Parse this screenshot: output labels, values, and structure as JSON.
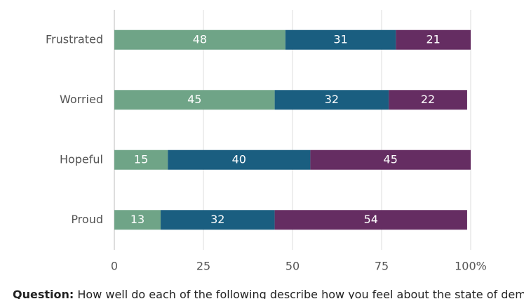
{
  "chart_data": {
    "type": "stacked-bar-horizontal",
    "categories": [
      "Frustrated",
      "Worried",
      "Hopeful",
      "Proud"
    ],
    "series": [
      {
        "color": "#6fa487",
        "values": [
          48,
          45,
          15,
          13
        ]
      },
      {
        "color": "#1a5e80",
        "values": [
          31,
          32,
          40,
          32
        ]
      },
      {
        "color": "#652d62",
        "values": [
          21,
          22,
          45,
          54
        ]
      }
    ],
    "xlim": [
      0,
      100
    ],
    "xticks": [
      0,
      25,
      50,
      75,
      {
        "value": 100,
        "label": "100%"
      }
    ],
    "grid": true,
    "note_label": "Question:",
    "note": "How well do each of the following describe how you feel about the state of democracy in"
  }
}
